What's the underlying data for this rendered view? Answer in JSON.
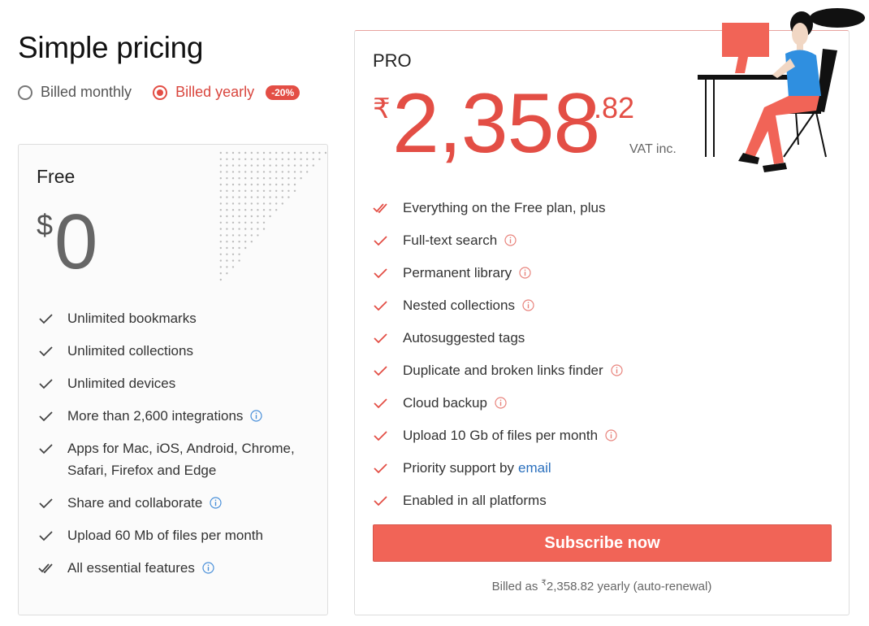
{
  "page": {
    "title": "Simple pricing"
  },
  "billing": {
    "monthly_label": "Billed monthly",
    "yearly_label": "Billed yearly",
    "selected": "yearly",
    "discount_badge": "-20%"
  },
  "free_plan": {
    "name": "Free",
    "currency": "$",
    "amount": "0",
    "features": [
      {
        "text": "Unlimited bookmarks",
        "info": false,
        "icon": "check-icon"
      },
      {
        "text": "Unlimited collections",
        "info": false,
        "icon": "check-icon"
      },
      {
        "text": "Unlimited devices",
        "info": false,
        "icon": "check-icon"
      },
      {
        "text": "More than 2,600 integrations",
        "info": true,
        "icon": "check-icon"
      },
      {
        "text": "Apps for Mac, iOS, Android, Chrome, Safari, Firefox and Edge",
        "info": false,
        "icon": "check-icon"
      },
      {
        "text": "Share and collaborate",
        "info": true,
        "icon": "check-icon"
      },
      {
        "text": "Upload 60 Mb of files per month",
        "info": false,
        "icon": "check-icon"
      },
      {
        "text": "All essential features",
        "info": true,
        "icon": "double-check-icon"
      }
    ]
  },
  "pro_plan": {
    "name": "PRO",
    "currency": "₹",
    "amount": "2,358",
    "cents": ".82",
    "vat_note": "VAT inc.",
    "features": [
      {
        "text": "Everything on the Free plan, plus",
        "info": false,
        "icon": "double-check-icon"
      },
      {
        "text": "Full-text search",
        "info": true,
        "icon": "check-icon"
      },
      {
        "text": "Permanent library",
        "info": true,
        "icon": "check-icon"
      },
      {
        "text": "Nested collections",
        "info": true,
        "icon": "check-icon"
      },
      {
        "text": "Autosuggested tags",
        "info": false,
        "icon": "check-icon"
      },
      {
        "text": "Duplicate and broken links finder",
        "info": true,
        "icon": "check-icon"
      },
      {
        "text": "Cloud backup",
        "info": true,
        "icon": "check-icon"
      },
      {
        "text": "Upload 10 Gb of files per month",
        "info": true,
        "icon": "check-icon"
      },
      {
        "text": "Priority support by",
        "info": false,
        "icon": "check-icon",
        "link": "email"
      },
      {
        "text": "Enabled in all platforms",
        "info": false,
        "icon": "check-icon"
      }
    ],
    "subscribe_label": "Subscribe now",
    "billed_prefix": "Billed as ",
    "billed_currency": "₹",
    "billed_suffix": "2,358.82 yearly (auto-renewal)"
  },
  "colors": {
    "accent": "#e34e45",
    "button": "#f16457",
    "free_info": "#4a90d9",
    "pro_info": "#e8837c",
    "link": "#2a6fbd"
  }
}
